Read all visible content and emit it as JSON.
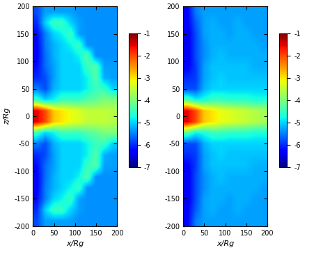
{
  "chart_data": [
    {
      "type": "heatmap",
      "xlabel": "x/Rg",
      "ylabel": "z/Rg",
      "xlim": [
        0,
        200
      ],
      "ylim": [
        -200,
        200
      ],
      "xticks": [
        0,
        50,
        100,
        150,
        200
      ],
      "yticks": [
        -200,
        -150,
        -100,
        -50,
        0,
        50,
        100,
        150,
        200
      ],
      "colorbar_range": [
        -7,
        -1
      ],
      "colorbar_ticks": [
        -1,
        -2,
        -3,
        -4,
        -5,
        -6,
        -7
      ],
      "cells": [
        [
          -5.8,
          -5.3,
          -5.3,
          -5.3,
          -5.3,
          -5.4,
          -5.4,
          -5.4,
          -5.4,
          -5.4
        ],
        [
          -6.0,
          -5.0,
          -4.5,
          -4.5,
          -5.0,
          -5.3,
          -5.4,
          -5.4,
          -5.4,
          -5.4
        ],
        [
          -6.2,
          -5.5,
          -5.0,
          -4.8,
          -4.5,
          -5.3,
          -5.4,
          -5.4,
          -5.4,
          -5.4
        ],
        [
          -6.3,
          -5.5,
          -5.2,
          -5.0,
          -4.8,
          -4.5,
          -5.4,
          -5.4,
          -5.4,
          -5.4
        ],
        [
          -6.3,
          -5.6,
          -5.2,
          -5.0,
          -5.0,
          -4.8,
          -4.3,
          -5.4,
          -5.4,
          -5.4
        ],
        [
          -6.2,
          -5.6,
          -5.3,
          -5.0,
          -5.0,
          -5.0,
          -4.5,
          -4.3,
          -5.3,
          -5.3
        ],
        [
          -6.0,
          -5.8,
          -5.3,
          -5.0,
          -5.0,
          -5.0,
          -4.8,
          -4.3,
          -5.2,
          -5.3
        ],
        [
          -5.5,
          -5.8,
          -5.2,
          -5.0,
          -5.0,
          -5.0,
          -4.8,
          -4.5,
          -4.5,
          -5.0
        ],
        [
          -4.5,
          -5.0,
          -4.8,
          -4.5,
          -4.5,
          -4.5,
          -4.3,
          -4.2,
          -4.0,
          -4.0
        ],
        [
          -1.5,
          -2.0,
          -2.8,
          -3.0,
          -3.2,
          -3.3,
          -3.5,
          -3.5,
          -3.5,
          -3.6
        ],
        [
          -1.5,
          -2.0,
          -2.8,
          -3.0,
          -3.2,
          -3.3,
          -3.5,
          -3.5,
          -3.5,
          -3.6
        ],
        [
          -4.5,
          -5.0,
          -4.8,
          -4.5,
          -4.5,
          -4.5,
          -4.3,
          -4.2,
          -4.0,
          -4.0
        ],
        [
          -5.5,
          -5.8,
          -5.2,
          -5.0,
          -5.0,
          -5.0,
          -4.8,
          -4.5,
          -4.5,
          -5.0
        ],
        [
          -6.0,
          -5.8,
          -5.3,
          -5.0,
          -5.0,
          -5.0,
          -4.8,
          -4.3,
          -5.2,
          -5.3
        ],
        [
          -6.2,
          -5.6,
          -5.3,
          -5.0,
          -5.0,
          -5.0,
          -4.5,
          -4.3,
          -5.3,
          -5.3
        ],
        [
          -6.3,
          -5.6,
          -5.2,
          -5.0,
          -5.0,
          -4.8,
          -4.3,
          -5.4,
          -5.4,
          -5.4
        ],
        [
          -6.3,
          -5.5,
          -5.2,
          -5.0,
          -4.8,
          -4.5,
          -5.4,
          -5.4,
          -5.4,
          -5.4
        ],
        [
          -6.2,
          -5.5,
          -5.0,
          -4.8,
          -4.5,
          -5.3,
          -5.4,
          -5.4,
          -5.4,
          -5.4
        ],
        [
          -6.0,
          -5.0,
          -4.5,
          -4.5,
          -5.0,
          -5.3,
          -5.4,
          -5.4,
          -5.4,
          -5.4
        ],
        [
          -5.8,
          -5.3,
          -5.3,
          -5.3,
          -5.3,
          -5.4,
          -5.4,
          -5.4,
          -5.4,
          -5.4
        ]
      ]
    },
    {
      "type": "heatmap",
      "xlabel": "x/Rg",
      "xlim": [
        0,
        200
      ],
      "ylim": [
        -200,
        200
      ],
      "xticks": [
        0,
        50,
        100,
        150,
        200
      ],
      "yticks": [
        -200,
        -150,
        -100,
        -50,
        0,
        50,
        100,
        150,
        200
      ],
      "colorbar_range": [
        -7,
        -1
      ],
      "colorbar_ticks": [
        -1,
        -2,
        -3,
        -4,
        -5,
        -6,
        -7
      ],
      "cells": [
        [
          -6.3,
          -5.5,
          -5.3,
          -5.3,
          -5.3,
          -5.3,
          -5.3,
          -5.3,
          -5.3,
          -5.3
        ],
        [
          -6.3,
          -5.7,
          -5.3,
          -5.2,
          -5.3,
          -5.3,
          -5.2,
          -5.3,
          -5.3,
          -5.3
        ],
        [
          -6.4,
          -5.8,
          -5.3,
          -5.2,
          -5.2,
          -5.3,
          -5.2,
          -5.2,
          -5.3,
          -5.3
        ],
        [
          -6.4,
          -5.8,
          -5.4,
          -5.2,
          -5.2,
          -5.2,
          -5.2,
          -5.2,
          -5.2,
          -5.3
        ],
        [
          -6.4,
          -5.8,
          -5.4,
          -5.2,
          -5.1,
          -5.2,
          -5.2,
          -5.2,
          -5.2,
          -5.2
        ],
        [
          -6.3,
          -5.9,
          -5.3,
          -5.1,
          -5.1,
          -5.1,
          -5.1,
          -5.1,
          -5.2,
          -5.2
        ],
        [
          -6.0,
          -5.9,
          -5.3,
          -5.1,
          -5.0,
          -5.1,
          -5.1,
          -5.1,
          -5.1,
          -5.1
        ],
        [
          -5.8,
          -5.8,
          -5.2,
          -5.0,
          -5.0,
          -5.0,
          -5.0,
          -5.0,
          -5.0,
          -5.0
        ],
        [
          -4.3,
          -4.8,
          -4.7,
          -4.5,
          -4.5,
          -4.6,
          -4.6,
          -4.6,
          -4.7,
          -4.7
        ],
        [
          -1.5,
          -2.0,
          -2.8,
          -3.0,
          -3.2,
          -3.3,
          -3.4,
          -3.5,
          -3.6,
          -3.7
        ],
        [
          -1.5,
          -2.0,
          -2.8,
          -3.0,
          -3.2,
          -3.3,
          -3.4,
          -3.5,
          -3.6,
          -3.7
        ],
        [
          -4.3,
          -4.8,
          -4.7,
          -4.5,
          -4.5,
          -4.6,
          -4.6,
          -4.6,
          -4.7,
          -4.7
        ],
        [
          -5.8,
          -5.8,
          -5.2,
          -5.0,
          -5.0,
          -5.0,
          -5.0,
          -5.0,
          -5.0,
          -5.0
        ],
        [
          -6.0,
          -5.9,
          -5.3,
          -5.1,
          -5.0,
          -5.1,
          -5.1,
          -5.1,
          -5.1,
          -5.1
        ],
        [
          -6.3,
          -5.9,
          -5.3,
          -5.1,
          -5.1,
          -5.1,
          -5.1,
          -5.1,
          -5.2,
          -5.2
        ],
        [
          -6.4,
          -5.8,
          -5.4,
          -5.2,
          -5.1,
          -5.2,
          -5.2,
          -5.2,
          -5.2,
          -5.2
        ],
        [
          -6.4,
          -5.8,
          -5.4,
          -5.2,
          -5.2,
          -5.2,
          -5.2,
          -5.2,
          -5.2,
          -5.3
        ],
        [
          -6.4,
          -5.8,
          -5.3,
          -5.2,
          -5.2,
          -5.3,
          -5.2,
          -5.2,
          -5.3,
          -5.3
        ],
        [
          -6.3,
          -5.7,
          -5.3,
          -5.2,
          -5.3,
          -5.3,
          -5.2,
          -5.3,
          -5.3,
          -5.3
        ],
        [
          -6.3,
          -5.5,
          -5.3,
          -5.3,
          -5.3,
          -5.3,
          -5.3,
          -5.3,
          -5.3,
          -5.3
        ]
      ]
    }
  ]
}
